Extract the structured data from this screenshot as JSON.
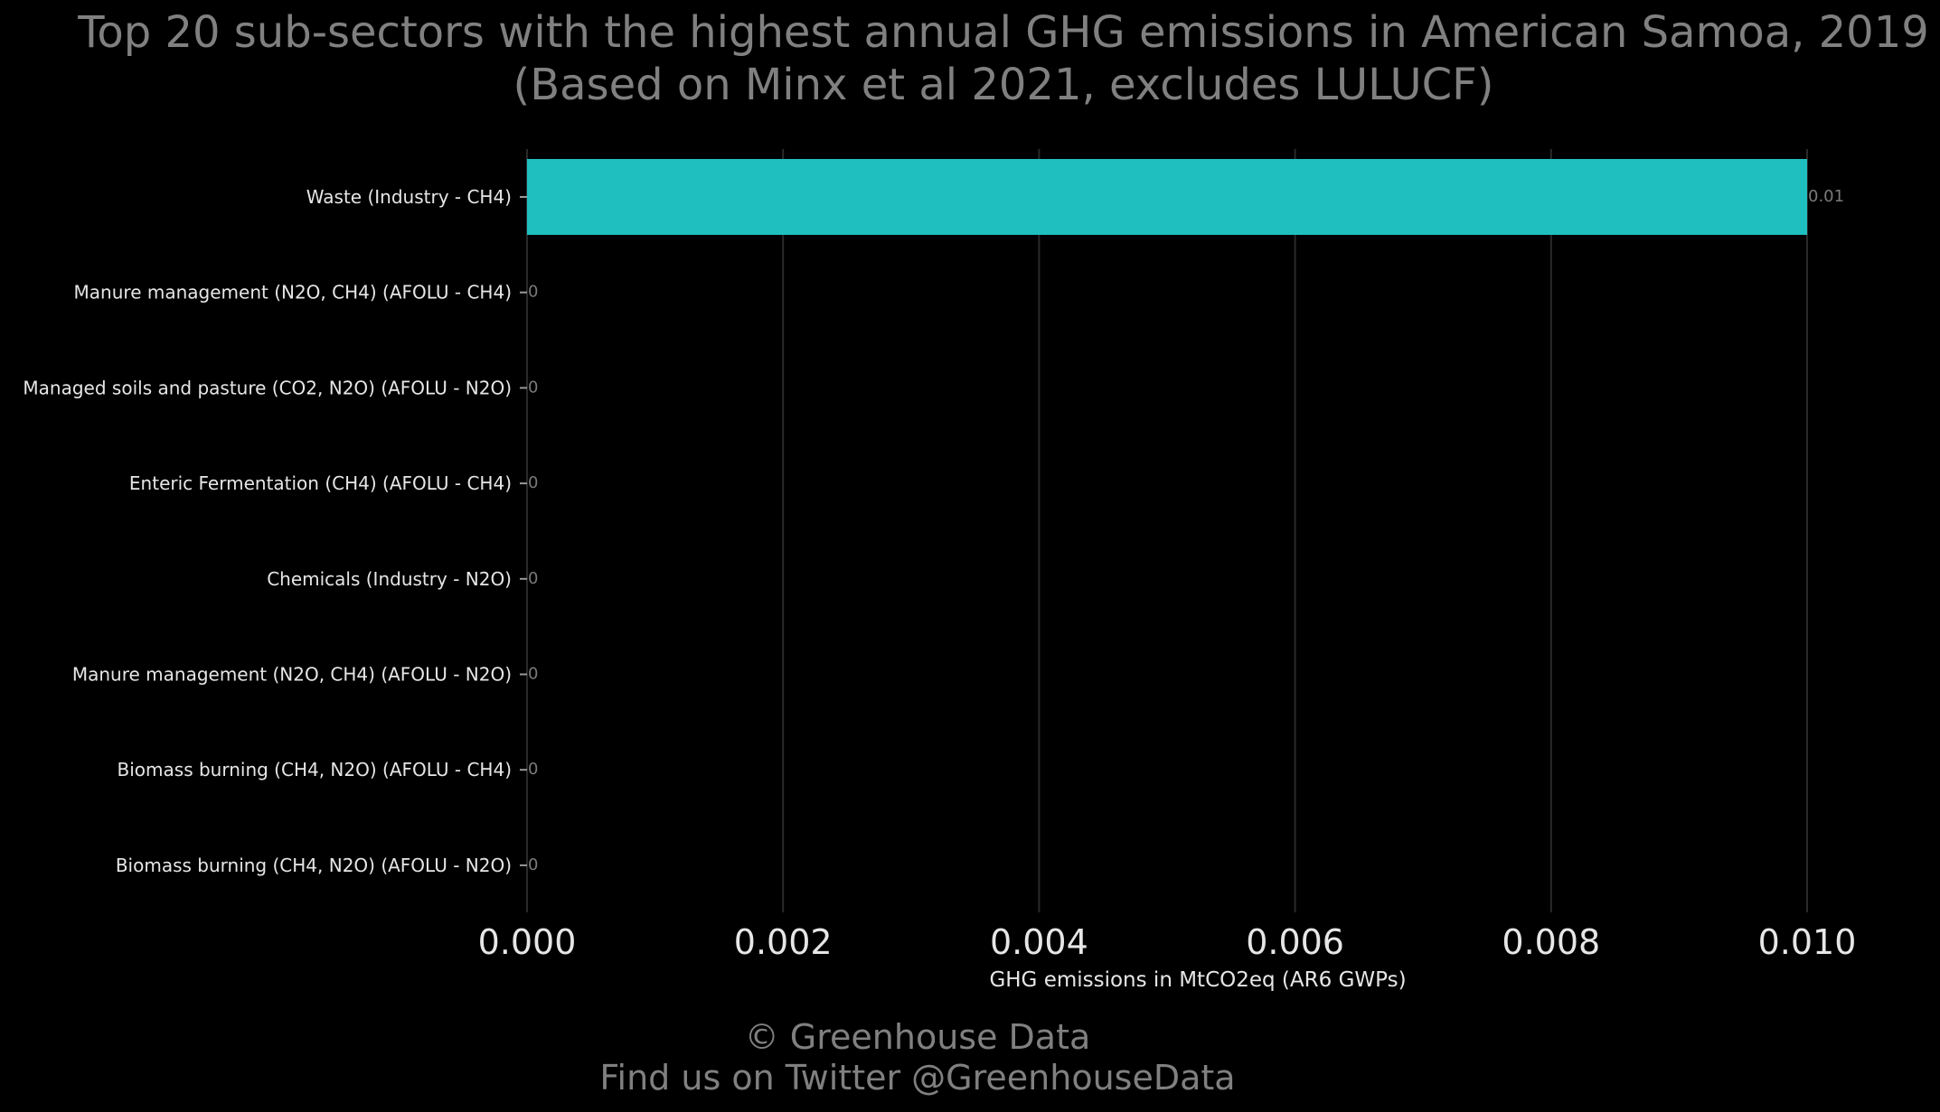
{
  "chart_data": {
    "type": "bar",
    "orientation": "horizontal",
    "title_line1": "Top 20 sub-sectors with the highest annual GHG emissions in American Samoa, 2019",
    "title_line2": "(Based on Minx et al 2021, excludes LULUCF)",
    "xlabel": "GHG emissions in MtCO2eq (AR6 GWPs)",
    "ylabel": "",
    "categories": [
      "Waste (Industry - CH4)",
      "Manure management (N2O, CH4) (AFOLU - CH4)",
      "Managed soils and pasture (CO2, N2O) (AFOLU - N2O)",
      "Enteric Fermentation (CH4) (AFOLU - CH4)",
      "Chemicals (Industry - N2O)",
      "Manure management (N2O, CH4) (AFOLU - N2O)",
      "Biomass burning (CH4, N2O) (AFOLU - CH4)",
      "Biomass burning (CH4, N2O) (AFOLU - N2O)"
    ],
    "values": [
      0.01,
      0,
      0,
      0,
      0,
      0,
      0,
      0
    ],
    "data_labels": [
      "0.01",
      "0",
      "0",
      "0",
      "0",
      "0",
      "0",
      "0"
    ],
    "xlim": [
      0,
      0.01
    ],
    "xticks": [
      "0.000",
      "0.002",
      "0.004",
      "0.006",
      "0.008",
      "0.010"
    ],
    "grid": true,
    "bar_color": "#20bfbf"
  },
  "footer": {
    "line1": "© Greenhouse Data",
    "line2": "Find us on Twitter @GreenhouseData"
  }
}
